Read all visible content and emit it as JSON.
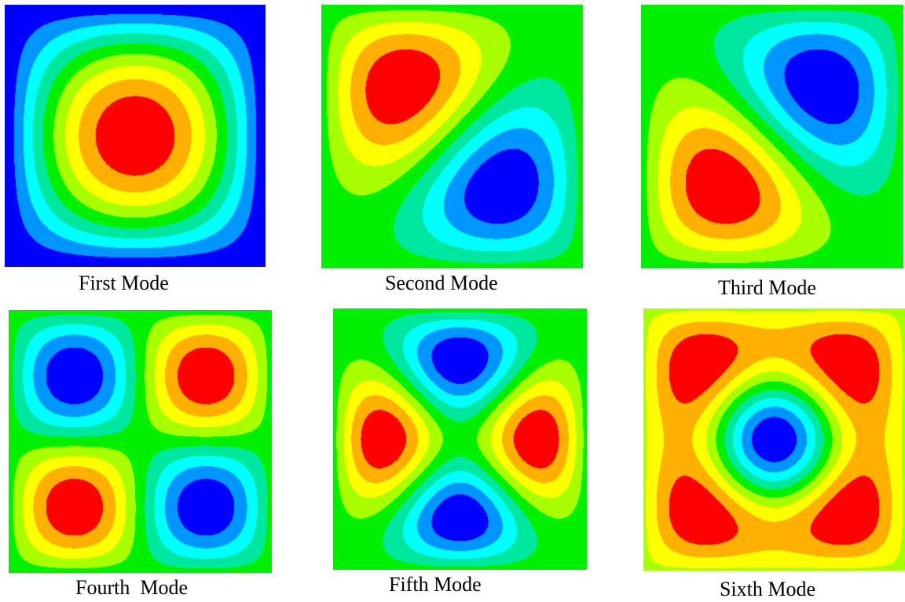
{
  "figure": {
    "palette": [
      "#0000ff",
      "#0096ff",
      "#00ffff",
      "#00e8a0",
      "#00f000",
      "#a8ff00",
      "#ffff00",
      "#ffb000",
      "#ff0000"
    ],
    "panels": [
      {
        "mode": 1,
        "caption": "First Mode",
        "shape": "sin(pi x) sin(pi y)",
        "background": "#0000ff"
      },
      {
        "mode": 2,
        "caption": "Second Mode",
        "shape": "sin(2 pi x) sin(pi y) - sin(pi x) sin(2 pi y)",
        "background": "#00f000"
      },
      {
        "mode": 3,
        "caption": "Third Mode",
        "shape": "sin(2 pi x) sin(pi y) + sin(pi x) sin(2 pi y)",
        "background": "#00f000"
      },
      {
        "mode": 4,
        "caption": "Fourth  Mode",
        "shape": "sin(2 pi x) sin(2 pi y)",
        "background": "#00f000"
      },
      {
        "mode": 5,
        "caption": "Fifth Mode",
        "shape": "sin(3 pi x) sin(pi y) - sin(pi x) sin(3 pi y)",
        "background": "#00f000"
      },
      {
        "mode": 6,
        "caption": "Sixth Mode",
        "shape": "sin(3 pi x) sin(pi y) + sin(pi x) sin(3 pi y)",
        "background": "#00f000"
      }
    ]
  }
}
